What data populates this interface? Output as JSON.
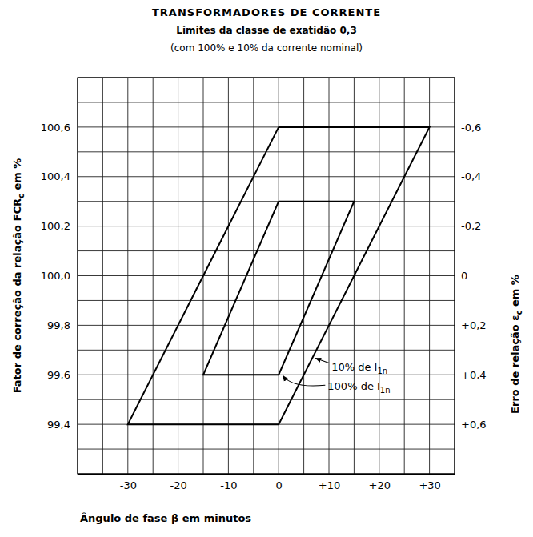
{
  "chart_data": {
    "type": "line",
    "title": "TRANSFORMADORES DE CORRENTE",
    "subtitle": [
      "Limites da classe de exatidão 0,3",
      "(com 100% e 10% da corrente nominal)"
    ],
    "xlabel": "Ângulo de fase β em minutos",
    "ylabel": {
      "text": "Fator de correção da relação FCR",
      "subscript": "c",
      "suffix": " em %"
    },
    "y2label": {
      "text": "Erro de relação ε",
      "subscript": "c",
      "suffix": " em %"
    },
    "xlim": [
      -40,
      35
    ],
    "xticks": [
      -30,
      -20,
      -10,
      0,
      {
        "value": 10,
        "label": "+10"
      },
      {
        "value": 20,
        "label": "+20"
      },
      {
        "value": 30,
        "label": "+30"
      }
    ],
    "ylim": [
      99.2,
      100.8
    ],
    "yticks": [
      {
        "value": 99.4,
        "label": "99,4"
      },
      {
        "value": 99.6,
        "label": "99,6"
      },
      {
        "value": 99.8,
        "label": "99,8"
      },
      {
        "value": 100.0,
        "label": "100,0"
      },
      {
        "value": 100.2,
        "label": "100,2"
      },
      {
        "value": 100.4,
        "label": "100,4"
      },
      {
        "value": 100.6,
        "label": "100,6"
      }
    ],
    "y2lim": [
      0.8,
      -0.8
    ],
    "y2ticks": [
      {
        "value": 0.6,
        "label": "+0,6"
      },
      {
        "value": 0.4,
        "label": "+0,4"
      },
      {
        "value": 0.2,
        "label": "+0,2"
      },
      0,
      {
        "value": -0.2,
        "label": "-0,2"
      },
      {
        "value": -0.4,
        "label": "-0,4"
      },
      {
        "value": -0.6,
        "label": "-0,6"
      }
    ],
    "grid": true,
    "grid_x": [
      -40,
      -35,
      -30,
      -25,
      -20,
      -15,
      -10,
      -5,
      0,
      5,
      10,
      15,
      20,
      25,
      30,
      35
    ],
    "grid_y": [
      99.2,
      99.3,
      99.4,
      99.5,
      99.6,
      99.7,
      99.8,
      99.9,
      100.0,
      100.1,
      100.2,
      100.3,
      100.4,
      100.5,
      100.6,
      100.7,
      100.8
    ],
    "series": [
      {
        "color": "#000000",
        "line_style": "solid",
        "x": [
          0,
          30,
          0,
          -30,
          0
        ],
        "values": [
          100.6,
          100.6,
          99.4,
          99.4,
          100.6
        ]
      },
      {
        "color": "#000000",
        "line_style": "solid",
        "x": [
          0,
          15,
          0,
          -15,
          0
        ],
        "values": [
          100.3,
          100.3,
          99.6,
          99.6,
          100.3
        ]
      }
    ],
    "annotations": [
      {
        "text": "10% de I",
        "subscript": "1n",
        "x": 7,
        "y": 99.67
      },
      {
        "text": "100% de I",
        "subscript": "1n",
        "x": 0.5,
        "y": 99.6
      }
    ]
  }
}
